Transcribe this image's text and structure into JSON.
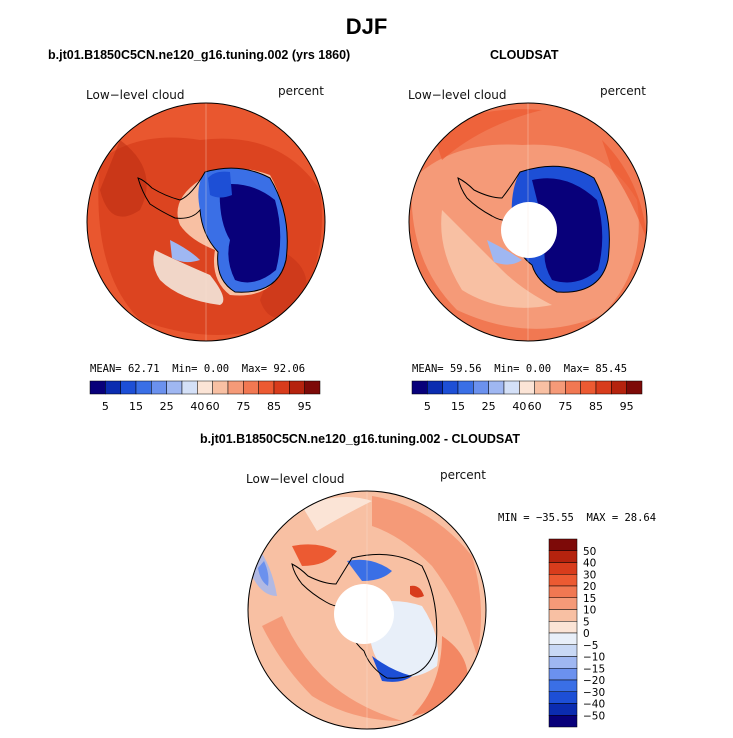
{
  "title": "DJF",
  "panels": [
    {
      "title": "b.jt01.B1850C5CN.ne120_g16.tuning.002 (yrs 1860)",
      "variable": "Low−level cloud",
      "units": "percent",
      "stats": {
        "mean_label": "MEAN=",
        "mean": "62.71",
        "min_label": "Min=",
        "min": "0.00",
        "max_label": "Max=",
        "max": "92.06"
      }
    },
    {
      "title": "CLOUDSAT",
      "variable": "Low−level cloud",
      "units": "percent",
      "stats": {
        "mean_label": "MEAN=",
        "mean": "59.56",
        "min_label": "Min=",
        "min": "0.00",
        "max_label": "Max=",
        "max": "85.45"
      }
    },
    {
      "title": "b.jt01.B1850C5CN.ne120_g16.tuning.002 - CLOUDSAT",
      "variable": "Low−level cloud",
      "units": "percent",
      "stats": {
        "min_label": "MIN =",
        "min": "−35.55",
        "max_label": "MAX =",
        "max": "28.64"
      }
    }
  ],
  "colorbars": {
    "abs": {
      "colors": [
        "#08007a",
        "#0b2cb0",
        "#1d4fd6",
        "#3a6fe6",
        "#6b91ee",
        "#9fb7f2",
        "#d4e0f7",
        "#fbe4d6",
        "#f8c0a3",
        "#f59a78",
        "#f17852",
        "#ec5a32",
        "#d83c1c",
        "#b5230e",
        "#7d0a08"
      ],
      "labels": [
        "5",
        "15",
        "25",
        "40",
        "60",
        "75",
        "85",
        "95"
      ]
    },
    "diff": {
      "colors": [
        "#08007a",
        "#0b2cb0",
        "#1d4fd6",
        "#3a6fe6",
        "#6b91ee",
        "#9fb7f2",
        "#c8d8f5",
        "#e8eff9",
        "#fbe4d6",
        "#f8c0a3",
        "#f59a78",
        "#f17852",
        "#ec5a32",
        "#d83c1c",
        "#b5230e",
        "#7d0a08"
      ],
      "labels": [
        "50",
        "40",
        "30",
        "20",
        "15",
        "10",
        "5",
        "0",
        "−5",
        "−10",
        "−15",
        "−20",
        "−30",
        "−40",
        "−50"
      ]
    }
  },
  "chart_data": [
    {
      "type": "heatmap",
      "projection": "south-polar-stereographic",
      "title": "b.jt01.B1850C5CN.ne120_g16.tuning.002 (yrs 1860)",
      "variable": "Low−level cloud",
      "units": "percent",
      "mean": 62.71,
      "min": 0.0,
      "max": 92.06,
      "levels": [
        5,
        10,
        15,
        20,
        25,
        30,
        40,
        50,
        60,
        70,
        75,
        80,
        85,
        90,
        95
      ]
    },
    {
      "type": "heatmap",
      "projection": "south-polar-stereographic",
      "title": "CLOUDSAT",
      "variable": "Low−level cloud",
      "units": "percent",
      "mean": 59.56,
      "min": 0.0,
      "max": 85.45,
      "levels": [
        5,
        10,
        15,
        20,
        25,
        30,
        40,
        50,
        60,
        70,
        75,
        80,
        85,
        90,
        95
      ]
    },
    {
      "type": "heatmap",
      "projection": "south-polar-stereographic",
      "title": "b.jt01.B1850C5CN.ne120_g16.tuning.002 - CLOUDSAT",
      "variable": "Low−level cloud",
      "units": "percent",
      "min": -35.55,
      "max": 28.64,
      "levels": [
        -50,
        -40,
        -30,
        -20,
        -15,
        -10,
        -5,
        0,
        5,
        10,
        15,
        20,
        30,
        40,
        50
      ]
    }
  ]
}
